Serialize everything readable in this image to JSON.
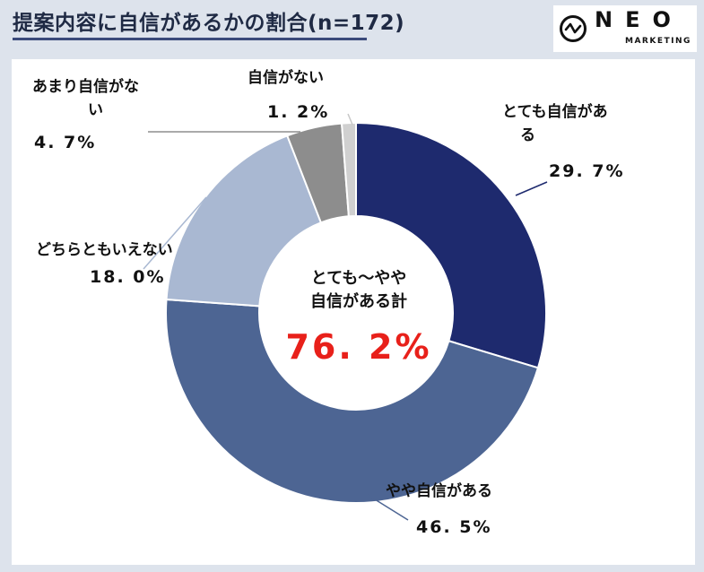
{
  "header": {
    "title": "提案内容に自信があるかの割合(n=172)"
  },
  "logo": {
    "wordmark": "NEO",
    "sub": "MARKETING"
  },
  "chart_data": {
    "type": "pie",
    "title": "提案内容に自信があるかの割合(n=172)",
    "categories": [
      "とても自信がある",
      "やや自信がある",
      "どちらともいえない",
      "あまり自信がない",
      "自信がない"
    ],
    "values": [
      29.7,
      46.5,
      18.0,
      4.7,
      1.2
    ],
    "value_labels": [
      "29. 7%",
      "46. 5%",
      "18. 0%",
      "4. 7%",
      "1. 2%"
    ],
    "label_lines": [
      [
        "とても自信があ",
        "る"
      ],
      [
        "やや自信がある"
      ],
      [
        "どちらともいえない"
      ],
      [
        "あまり自信がな",
        "い"
      ],
      [
        "自信がない"
      ]
    ],
    "colors": [
      "#1e2a6e",
      "#4d6593",
      "#a9b8d2",
      "#8d8d8d",
      "#d0d0d0"
    ],
    "donut": true,
    "center_label": [
      "とても～やや",
      "自信がある計"
    ],
    "center_value": "76. 2%"
  }
}
